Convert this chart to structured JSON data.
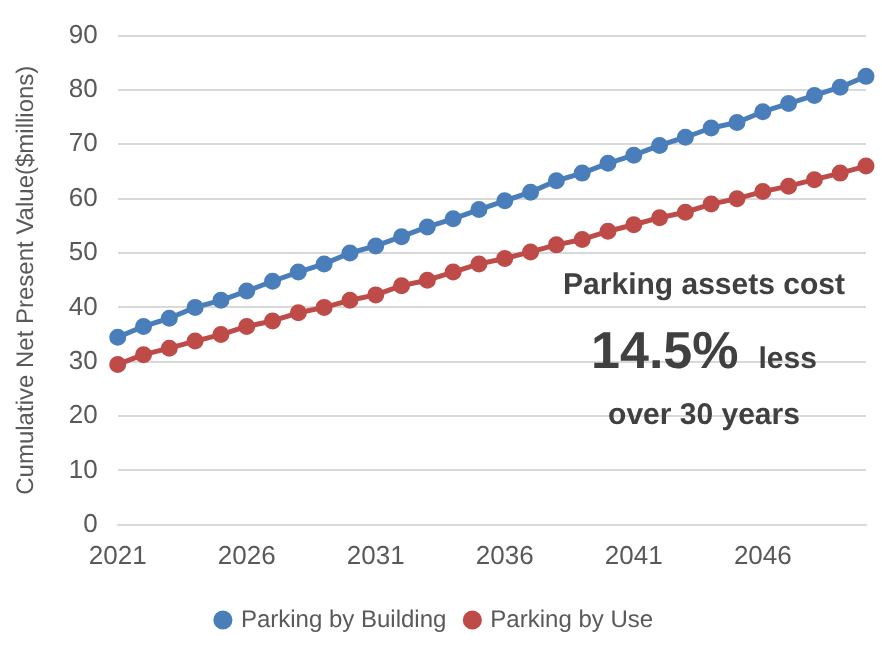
{
  "chart_data": {
    "type": "line",
    "ylabel": "Cumulative Net Present Value($millions)",
    "categories": [
      "2021",
      null,
      null,
      null,
      null,
      "2026",
      null,
      null,
      null,
      null,
      "2031",
      null,
      null,
      null,
      null,
      "2036",
      null,
      null,
      null,
      null,
      "2041",
      null,
      null,
      null,
      null,
      "2046",
      null,
      null,
      null,
      null
    ],
    "series": [
      {
        "name": "Parking by Building",
        "color": "#4a7ebb",
        "values": [
          34.5,
          36.5,
          38,
          40,
          41.3,
          43,
          44.8,
          46.5,
          48,
          50,
          51.3,
          53,
          54.8,
          56.3,
          58,
          59.6,
          61.2,
          63.3,
          64.7,
          66.5,
          68,
          69.8,
          71.3,
          73,
          74,
          76,
          77.5,
          79,
          80.5,
          82.5
        ]
      },
      {
        "name": "Parking by Use",
        "color": "#be4b48",
        "values": [
          29.5,
          31.3,
          32.5,
          33.8,
          35,
          36.5,
          37.5,
          39,
          40,
          41.3,
          42.3,
          44,
          45,
          46.5,
          48,
          49,
          50.2,
          51.5,
          52.5,
          54,
          55.2,
          56.5,
          57.5,
          59,
          60,
          61.3,
          62.3,
          63.5,
          64.7,
          66
        ]
      }
    ],
    "ylim": [
      0,
      90
    ],
    "yticks": [
      0,
      10,
      20,
      30,
      40,
      50,
      60,
      70,
      80,
      90
    ],
    "grid": "y",
    "legend": "bottom",
    "marker": "circle",
    "line_style": "solid",
    "annotations": [
      "Parking assets cost",
      "14.5%",
      "less",
      "over 30 years"
    ]
  }
}
